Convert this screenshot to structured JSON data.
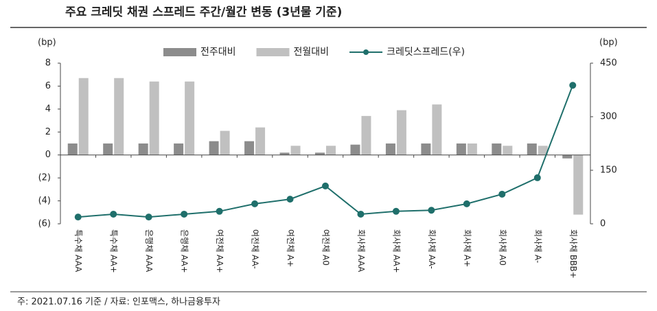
{
  "chart_data": {
    "type": "bar-line",
    "title": "주요 크레딧 채권 스프레드 주간/월간 변동 (3년물 기준)",
    "y_label": "(bp)",
    "y2_label": "(bp)",
    "footnote": "주: 2021.07.16 기준 / 자료: 인포맥스, 하나금융투자",
    "categories": [
      "특수채 AAA",
      "특수채 AA+",
      "은행채 AAA",
      "은행채 AA+",
      "여전채 AA+",
      "여전채 AA-",
      "여전채 A+",
      "여전채 A0",
      "회사채 AAA",
      "회사채 AA+",
      "회사채 AA-",
      "회사채 A+",
      "회사채 A0",
      "회사채 A-",
      "회사채 BBB+"
    ],
    "series": [
      {
        "name": "전주대비",
        "type": "bar",
        "color": "#8c8c8c",
        "values": [
          1,
          1,
          1,
          1,
          1.2,
          1.2,
          0.2,
          0.2,
          0.9,
          1,
          1,
          1,
          1,
          1,
          -0.3
        ]
      },
      {
        "name": "전월대비",
        "type": "bar",
        "color": "#c0c0c0",
        "values": [
          6.7,
          6.7,
          6.4,
          6.4,
          2.1,
          2.4,
          0.8,
          0.8,
          3.4,
          3.9,
          4.4,
          1,
          0.8,
          0.8,
          -5.2
        ]
      },
      {
        "name": "크레딧스프레드(우)",
        "type": "line",
        "axis": "y2",
        "color": "#1f6f6b",
        "values": [
          19,
          27,
          19,
          27,
          35,
          56,
          69,
          106,
          27,
          35,
          38,
          56,
          83,
          129,
          388
        ]
      }
    ],
    "ylim": [
      -6,
      8
    ],
    "yticks": [
      {
        "value": -6,
        "label": "(6)"
      },
      {
        "value": -4,
        "label": "(4)"
      },
      {
        "value": -2,
        "label": "(2)"
      },
      0,
      2,
      4,
      6,
      8
    ],
    "y2lim": [
      0,
      450
    ],
    "y2ticks": [
      0,
      150,
      300,
      450
    ],
    "legend": "top"
  }
}
